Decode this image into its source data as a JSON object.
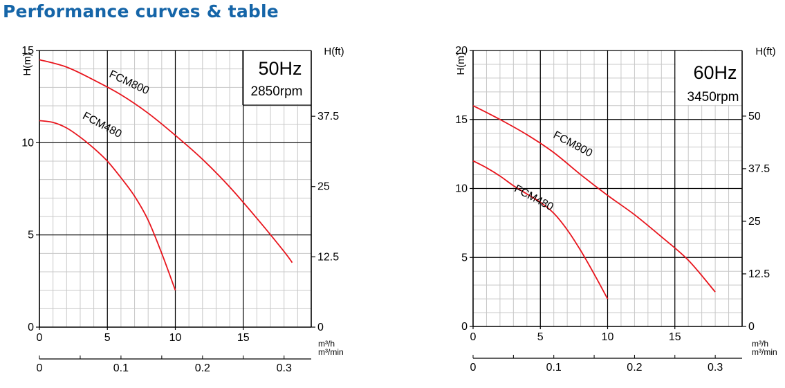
{
  "page": {
    "title": "Performance curves & table"
  },
  "colors": {
    "title": "#1565a8",
    "curve": "#e8141c",
    "freq": "#1a6fc4",
    "grid_minor": "#c8c8c8",
    "grid_major": "#000000"
  },
  "chart_data": [
    {
      "type": "line",
      "frequency_label": "50Hz",
      "speed_label": "2850rpm",
      "ylabel": "H(m)",
      "ylabel_right": "H(ft)",
      "xlabel_top": "m³/h",
      "xlabel_bottom": "m³/min",
      "xlim": [
        0,
        20
      ],
      "ylim": [
        0,
        15
      ],
      "x_ticks": [
        0,
        5,
        10,
        15
      ],
      "y_ticks": [
        0,
        5,
        10,
        15
      ],
      "y_tick_labels": [
        "0",
        "5",
        "10",
        "15"
      ],
      "x2_ticks": [
        0,
        0.1,
        0.2,
        0.3
      ],
      "x2_tick_labels": [
        "0",
        "0.1",
        "0.2",
        "0.3"
      ],
      "y2_ticks": [
        0,
        12.5,
        25,
        37.5
      ],
      "y2_tick_labels": [
        "0",
        "12.5",
        "25",
        "37.5"
      ],
      "grid": true,
      "series": [
        {
          "name": "FCM800",
          "x": [
            0,
            2,
            4,
            6,
            8,
            10,
            12,
            14,
            16,
            18,
            18.6
          ],
          "y": [
            14.5,
            14.1,
            13.4,
            12.6,
            11.6,
            10.4,
            9.1,
            7.6,
            5.9,
            4.1,
            3.5
          ]
        },
        {
          "name": "FCM480",
          "x": [
            0,
            1,
            2,
            3,
            4,
            5,
            6,
            7,
            8,
            9,
            10
          ],
          "y": [
            11.2,
            11.1,
            10.8,
            10.3,
            9.7,
            9.0,
            8.1,
            7.1,
            5.8,
            4.0,
            2.0
          ]
        }
      ]
    },
    {
      "type": "line",
      "frequency_label": "60Hz",
      "speed_label": "3450rpm",
      "ylabel": "H(m)",
      "ylabel_right": "H(ft)",
      "xlabel_top": "m³/h",
      "xlabel_bottom": "m³/min",
      "xlim": [
        0,
        20
      ],
      "ylim": [
        0,
        20
      ],
      "x_ticks": [
        0,
        5,
        10,
        15
      ],
      "y_ticks": [
        0,
        5,
        10,
        15,
        20
      ],
      "y_tick_labels": [
        "0",
        "5",
        "10",
        "15",
        "20"
      ],
      "x2_ticks": [
        0,
        0.1,
        0.2,
        0.3
      ],
      "x2_tick_labels": [
        "0",
        "0.1",
        "0.2",
        "0.3"
      ],
      "y2_ticks": [
        0,
        12.5,
        25,
        37.5,
        50
      ],
      "y2_tick_labels": [
        "0",
        "12.5",
        "25",
        "37.5",
        "50"
      ],
      "grid": true,
      "series": [
        {
          "name": "FCM800",
          "x": [
            0,
            2,
            4,
            6,
            8,
            10,
            12,
            14,
            16,
            18
          ],
          "y": [
            16,
            15.0,
            13.9,
            12.6,
            11.0,
            9.5,
            8.1,
            6.5,
            4.8,
            2.5
          ]
        },
        {
          "name": "FCM480",
          "x": [
            0,
            1,
            2,
            3,
            4,
            5,
            6,
            7,
            8,
            9,
            10
          ],
          "y": [
            12,
            11.5,
            10.9,
            10.2,
            9.6,
            9.0,
            8.2,
            7.0,
            5.5,
            3.8,
            2.0
          ]
        }
      ]
    }
  ]
}
